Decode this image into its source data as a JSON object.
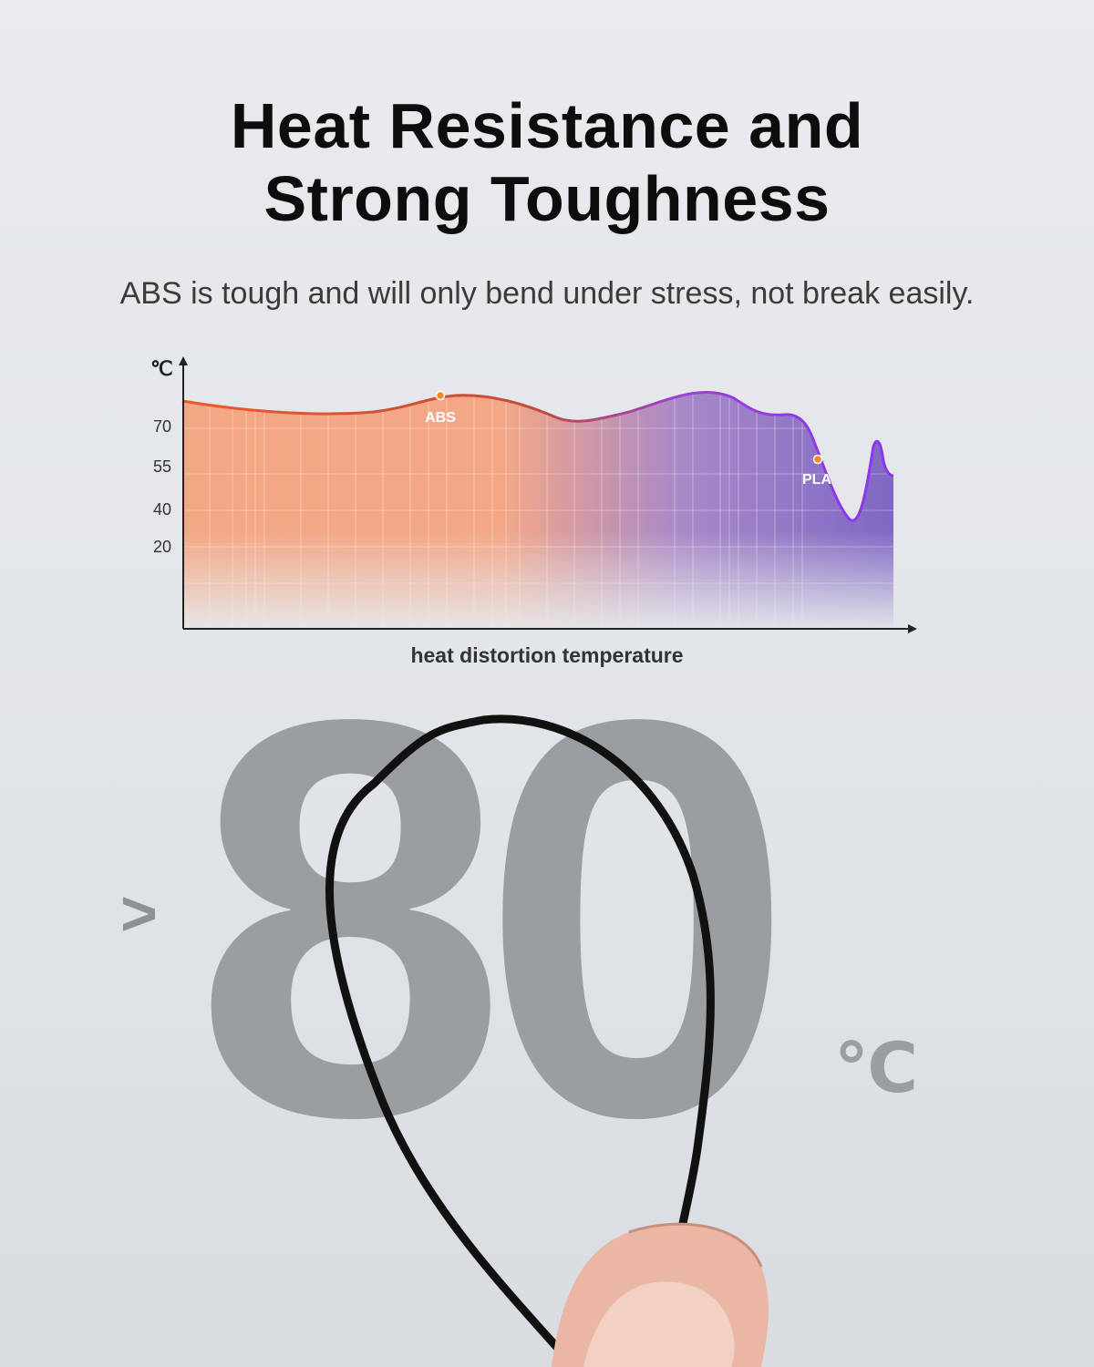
{
  "header": {
    "title_line1": "Heat Resistance and",
    "title_line2": "Strong Toughness",
    "subtitle": "ABS is tough and will only bend under stress, not break easily."
  },
  "chart_data": {
    "type": "area",
    "y_unit": "℃",
    "xlabel": "heat distortion temperature",
    "y_ticks": [
      20,
      40,
      55,
      70
    ],
    "ylim": [
      0,
      90
    ],
    "markers": [
      {
        "label": "ABS",
        "value": 80,
        "color": "#f08a2a"
      },
      {
        "label": "PLA",
        "value": 55,
        "color": "#f08a2a"
      }
    ],
    "colors": {
      "start": "#f27a3d",
      "end": "#8b3cf0"
    },
    "grid": true
  },
  "highlight": {
    "prefix": ">",
    "value": "80",
    "unit": "℃"
  }
}
